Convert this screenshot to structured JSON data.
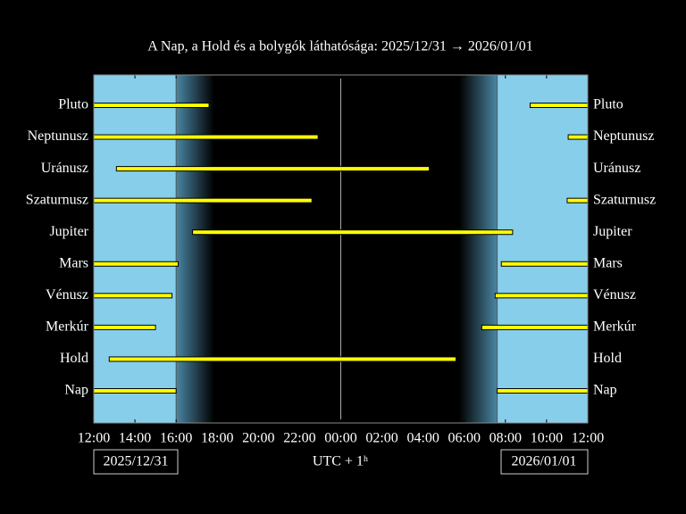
{
  "chart_data": {
    "type": "interval",
    "title": "A Nap, a Hold és a bolygók láthatósága: 2025/12/31 → 2026/01/01",
    "categories": [
      "Pluto",
      "Neptunusz",
      "Uránusz",
      "Szaturnusz",
      "Jupiter",
      "Mars",
      "Vénusz",
      "Merkúr",
      "Hold",
      "Nap"
    ],
    "intervals": [
      [
        [
          12,
          17.6
        ],
        [
          33.2,
          36
        ]
      ],
      [
        [
          12,
          22.9
        ],
        [
          35.05,
          36
        ]
      ],
      [
        [
          13.1,
          28.3
        ]
      ],
      [
        [
          12,
          22.6
        ],
        [
          35.0,
          36
        ]
      ],
      [
        [
          16.8,
          32.35
        ]
      ],
      [
        [
          12,
          16.1
        ],
        [
          31.8,
          36
        ]
      ],
      [
        [
          12,
          15.8
        ],
        [
          31.5,
          36
        ]
      ],
      [
        [
          12,
          15.0
        ],
        [
          30.85,
          36
        ]
      ],
      [
        [
          12.75,
          29.6
        ]
      ],
      [
        [
          12,
          16.0
        ],
        [
          31.6,
          36
        ]
      ]
    ],
    "color": "#ffff00",
    "xlim": [
      12,
      36
    ],
    "xticks": [
      {
        "value": 12,
        "label": "12:00"
      },
      {
        "value": 14,
        "label": "14:00"
      },
      {
        "value": 16,
        "label": "16:00"
      },
      {
        "value": 18,
        "label": "18:00"
      },
      {
        "value": 20,
        "label": "20:00"
      },
      {
        "value": 22,
        "label": "22:00"
      },
      {
        "value": 24,
        "label": "00:00"
      },
      {
        "value": 26,
        "label": "02:00"
      },
      {
        "value": 28,
        "label": "04:00"
      },
      {
        "value": 30,
        "label": "06:00"
      },
      {
        "value": 32,
        "label": "08:00"
      },
      {
        "value": 34,
        "label": "10:00"
      },
      {
        "value": 36,
        "label": "12:00"
      }
    ],
    "midnight": 24,
    "start_date": "2025/12/31",
    "end_date": "2026/01/01",
    "x_label": "UTC + 1ʰ"
  }
}
